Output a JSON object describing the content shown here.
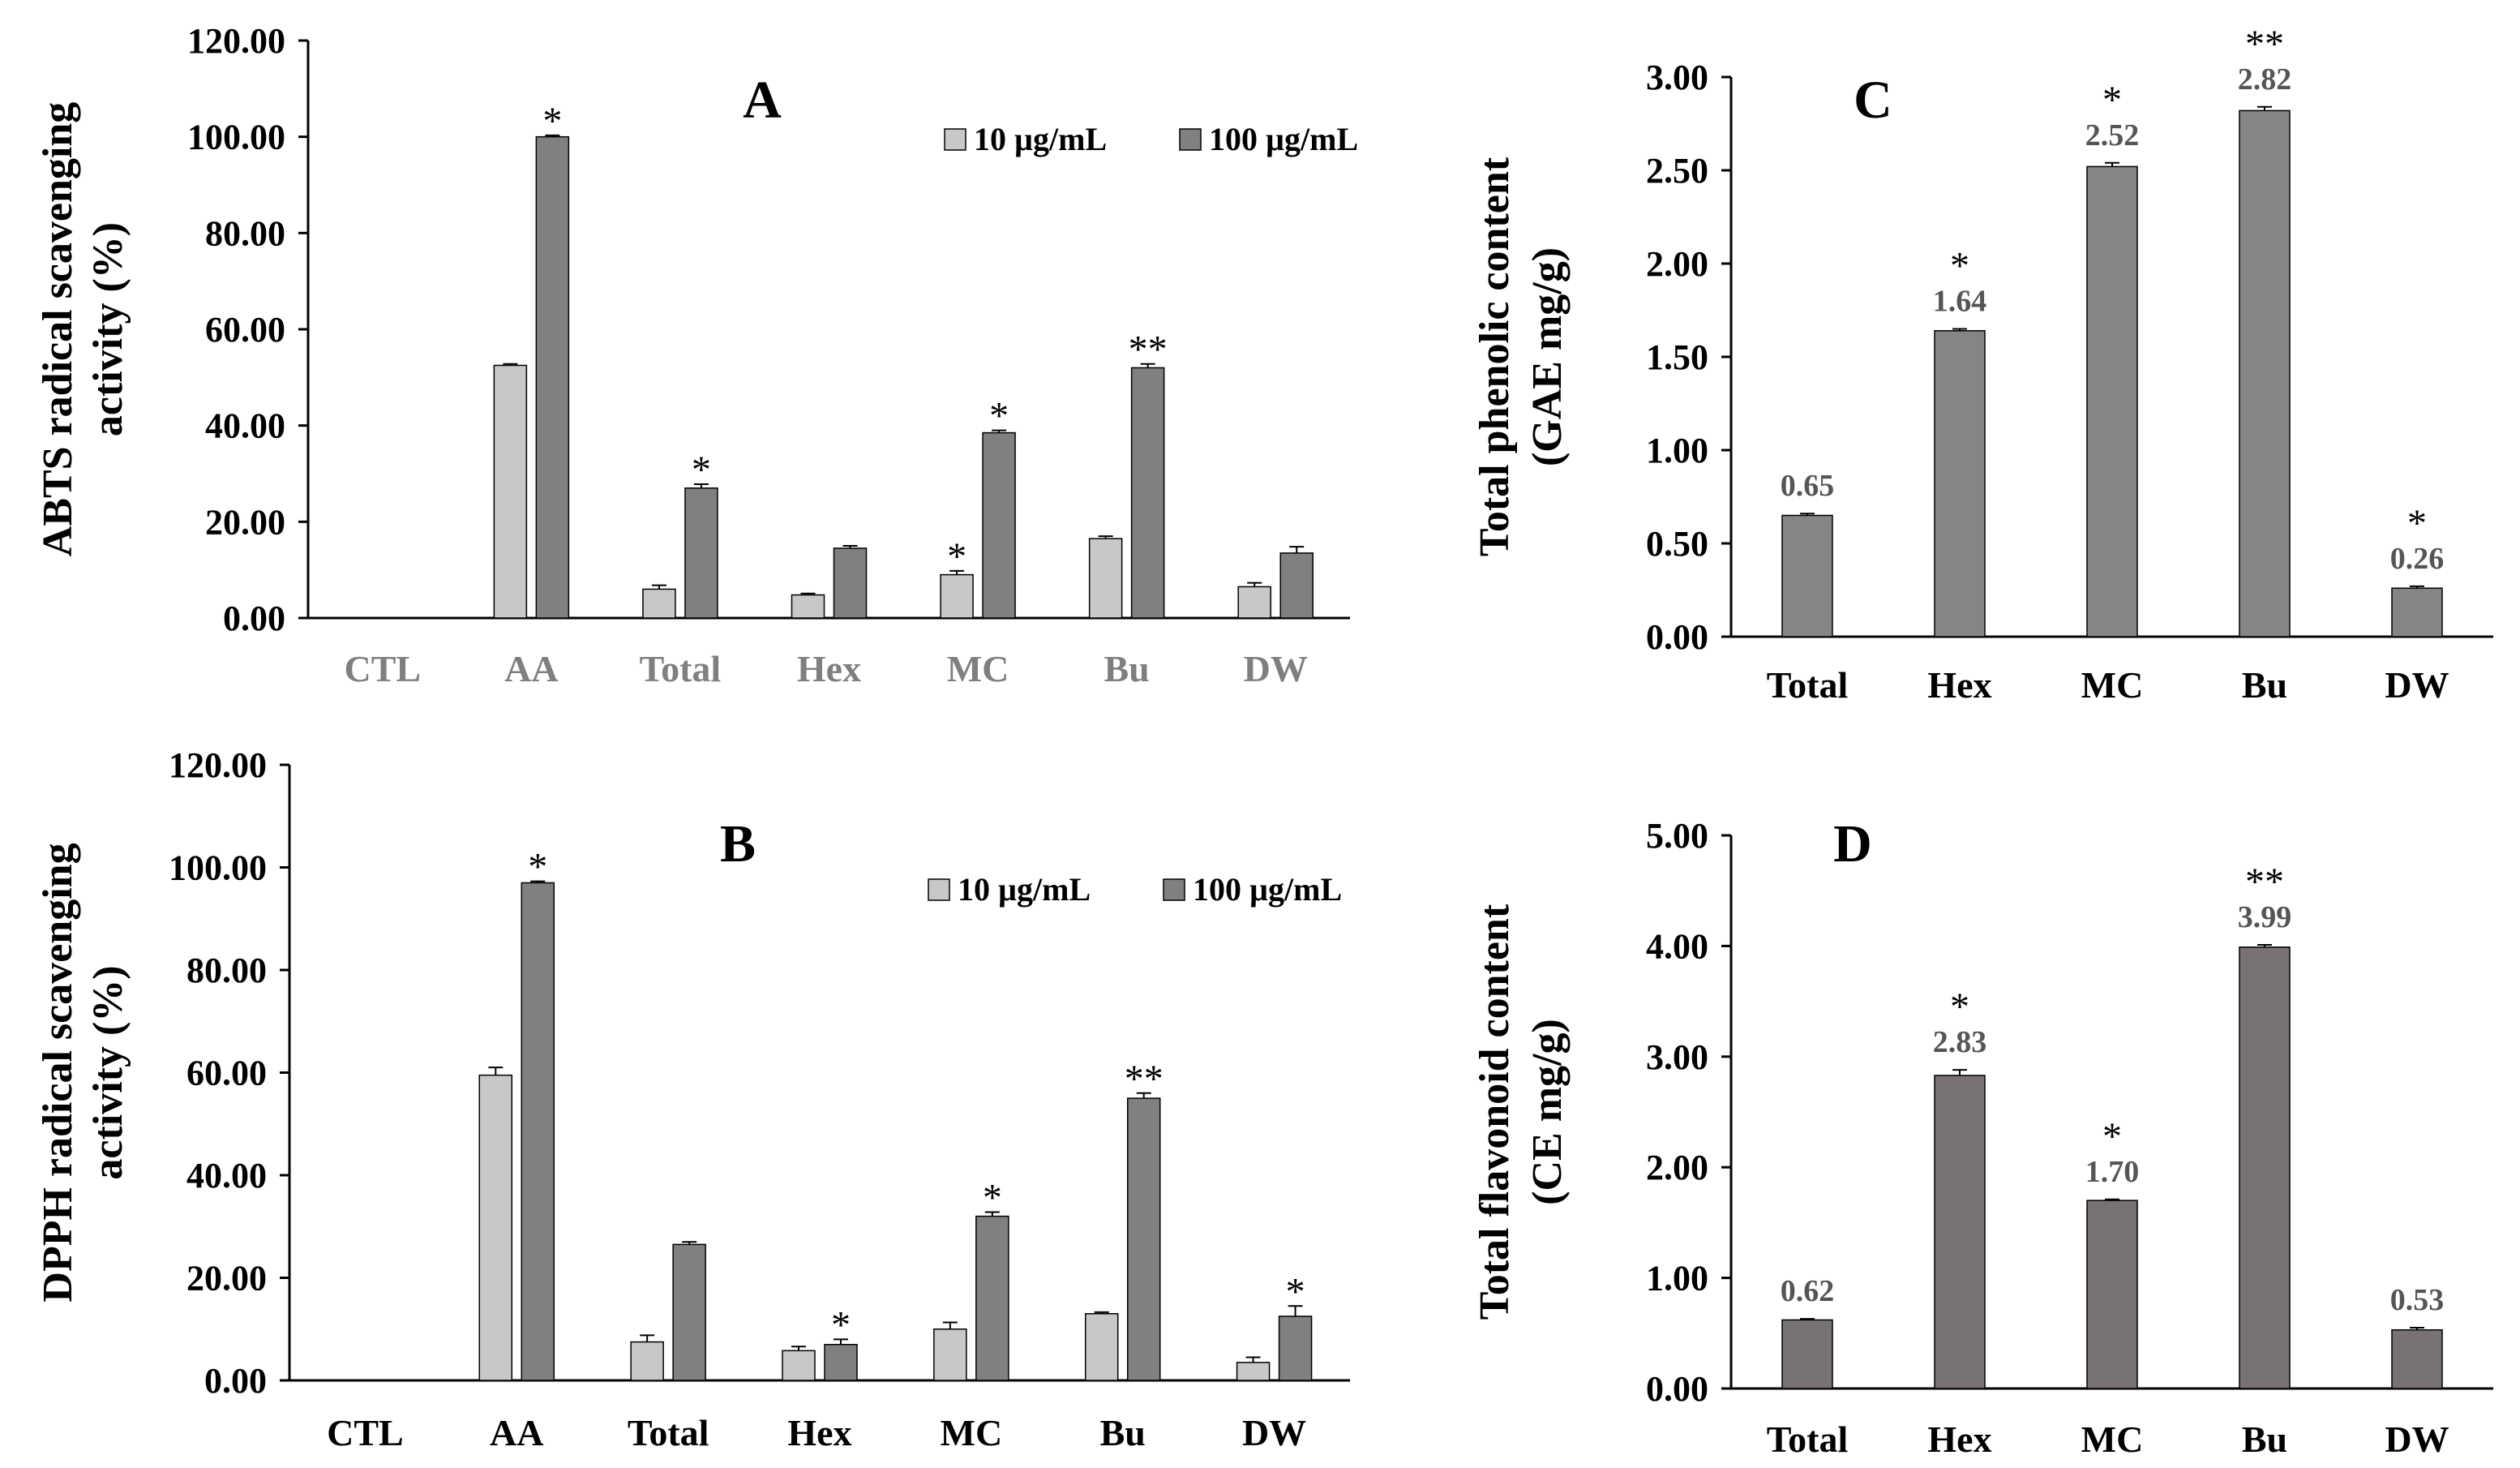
{
  "colors": {
    "light_bar": "#c8c8c8",
    "dark_bar": "#808080",
    "phenolic_bar": "#858585",
    "flavonoid_bar": "#787272",
    "text_dark": "#000000",
    "text_gray": "#7f7f7f",
    "axis": "#000000"
  },
  "chart_data": [
    {
      "panel": "A",
      "type": "bar",
      "title": "A",
      "ylabel": "ABTS radical scavenging activity (%)",
      "ylabel_lines": [
        "ABTS radical scavenging",
        "activity (%)"
      ],
      "ylim": [
        0,
        120
      ],
      "yticks": [
        "0.00",
        "20.00",
        "40.00",
        "60.00",
        "80.00",
        "100.00",
        "120.00"
      ],
      "categories": [
        "CTL",
        "AA",
        "Total",
        "Hex",
        "MC",
        "Bu",
        "DW"
      ],
      "category_label_color": "gray",
      "legend_position": "top-right",
      "series": [
        {
          "name": "10 µg/mL",
          "values": [
            0,
            52.5,
            6.0,
            4.8,
            9.0,
            16.5,
            6.5
          ],
          "errors": [
            0,
            0.3,
            0.8,
            0.3,
            0.8,
            0.5,
            0.8
          ],
          "marks": [
            "",
            "",
            "",
            "",
            "*",
            "",
            ""
          ]
        },
        {
          "name": "100 µg/mL",
          "values": [
            0,
            100.0,
            27.0,
            14.5,
            38.5,
            52.0,
            13.5
          ],
          "errors": [
            0,
            0.3,
            0.8,
            0.5,
            0.5,
            0.8,
            1.3
          ],
          "marks": [
            "",
            "*",
            "*",
            "",
            "*",
            "**",
            ""
          ]
        }
      ]
    },
    {
      "panel": "B",
      "type": "bar",
      "title": "B",
      "ylabel": "DPPH radical scavenging activity (%)",
      "ylabel_lines": [
        "DPPH radical scavenging",
        "activity (%)"
      ],
      "ylim": [
        0,
        120
      ],
      "yticks": [
        "0.00",
        "20.00",
        "40.00",
        "60.00",
        "80.00",
        "100.00",
        "120.00"
      ],
      "categories": [
        "CTL",
        "AA",
        "Total",
        "Hex",
        "MC",
        "Bu",
        "DW"
      ],
      "category_label_color": "dark",
      "legend_position": "top-right",
      "series": [
        {
          "name": "10 µg/mL",
          "values": [
            0,
            59.5,
            7.5,
            5.8,
            10.0,
            13.0,
            3.5
          ],
          "errors": [
            0,
            1.5,
            1.3,
            0.8,
            1.3,
            0.3,
            1.0
          ],
          "marks": [
            "",
            "",
            "",
            "",
            "",
            "",
            ""
          ]
        },
        {
          "name": "100 µg/mL",
          "values": [
            0,
            97.0,
            26.5,
            7.0,
            32.0,
            55.0,
            12.5
          ],
          "errors": [
            0,
            0.3,
            0.5,
            1.0,
            0.8,
            1.0,
            2.0
          ],
          "marks": [
            "",
            "*",
            "",
            "*",
            "*",
            "**",
            "*"
          ]
        }
      ]
    },
    {
      "panel": "C",
      "type": "bar",
      "title": "C",
      "ylabel": "Total phenolic content (GAE mg/g)",
      "ylabel_lines": [
        "Total phenolic content",
        "(GAE mg/g)"
      ],
      "ylim": [
        0,
        3
      ],
      "yticks": [
        "0.00",
        "0.50",
        "1.00",
        "1.50",
        "2.00",
        "2.50",
        "3.00"
      ],
      "categories": [
        "Total",
        "Hex",
        "MC",
        "Bu",
        "DW"
      ],
      "category_label_color": "dark",
      "series": [
        {
          "name": "Total phenolic content",
          "values": [
            0.65,
            1.64,
            2.52,
            2.82,
            0.26
          ],
          "errors": [
            0.01,
            0.01,
            0.02,
            0.02,
            0.01
          ],
          "labels": [
            "0.65",
            "1.64",
            "2.52",
            "2.82",
            "0.26"
          ],
          "marks": [
            "",
            "*",
            "*",
            "**",
            "*"
          ]
        }
      ]
    },
    {
      "panel": "D",
      "type": "bar",
      "title": "D",
      "ylabel": "Total flavonoid content (CE mg/g)",
      "ylabel_lines": [
        "Total flavonoid content",
        "(CE mg/g)"
      ],
      "ylim": [
        0,
        5
      ],
      "yticks": [
        "0.00",
        "1.00",
        "2.00",
        "3.00",
        "4.00",
        "5.00"
      ],
      "categories": [
        "Total",
        "Hex",
        "MC",
        "Bu",
        "DW"
      ],
      "category_label_color": "dark",
      "series": [
        {
          "name": "Total flavonoid content",
          "values": [
            0.62,
            2.83,
            1.7,
            3.99,
            0.53
          ],
          "errors": [
            0.01,
            0.05,
            0.01,
            0.02,
            0.02
          ],
          "labels": [
            "0.62",
            "2.83",
            "1.70",
            "3.99",
            "0.53"
          ],
          "marks": [
            "",
            "*",
            "*",
            "**",
            ""
          ]
        }
      ]
    }
  ]
}
